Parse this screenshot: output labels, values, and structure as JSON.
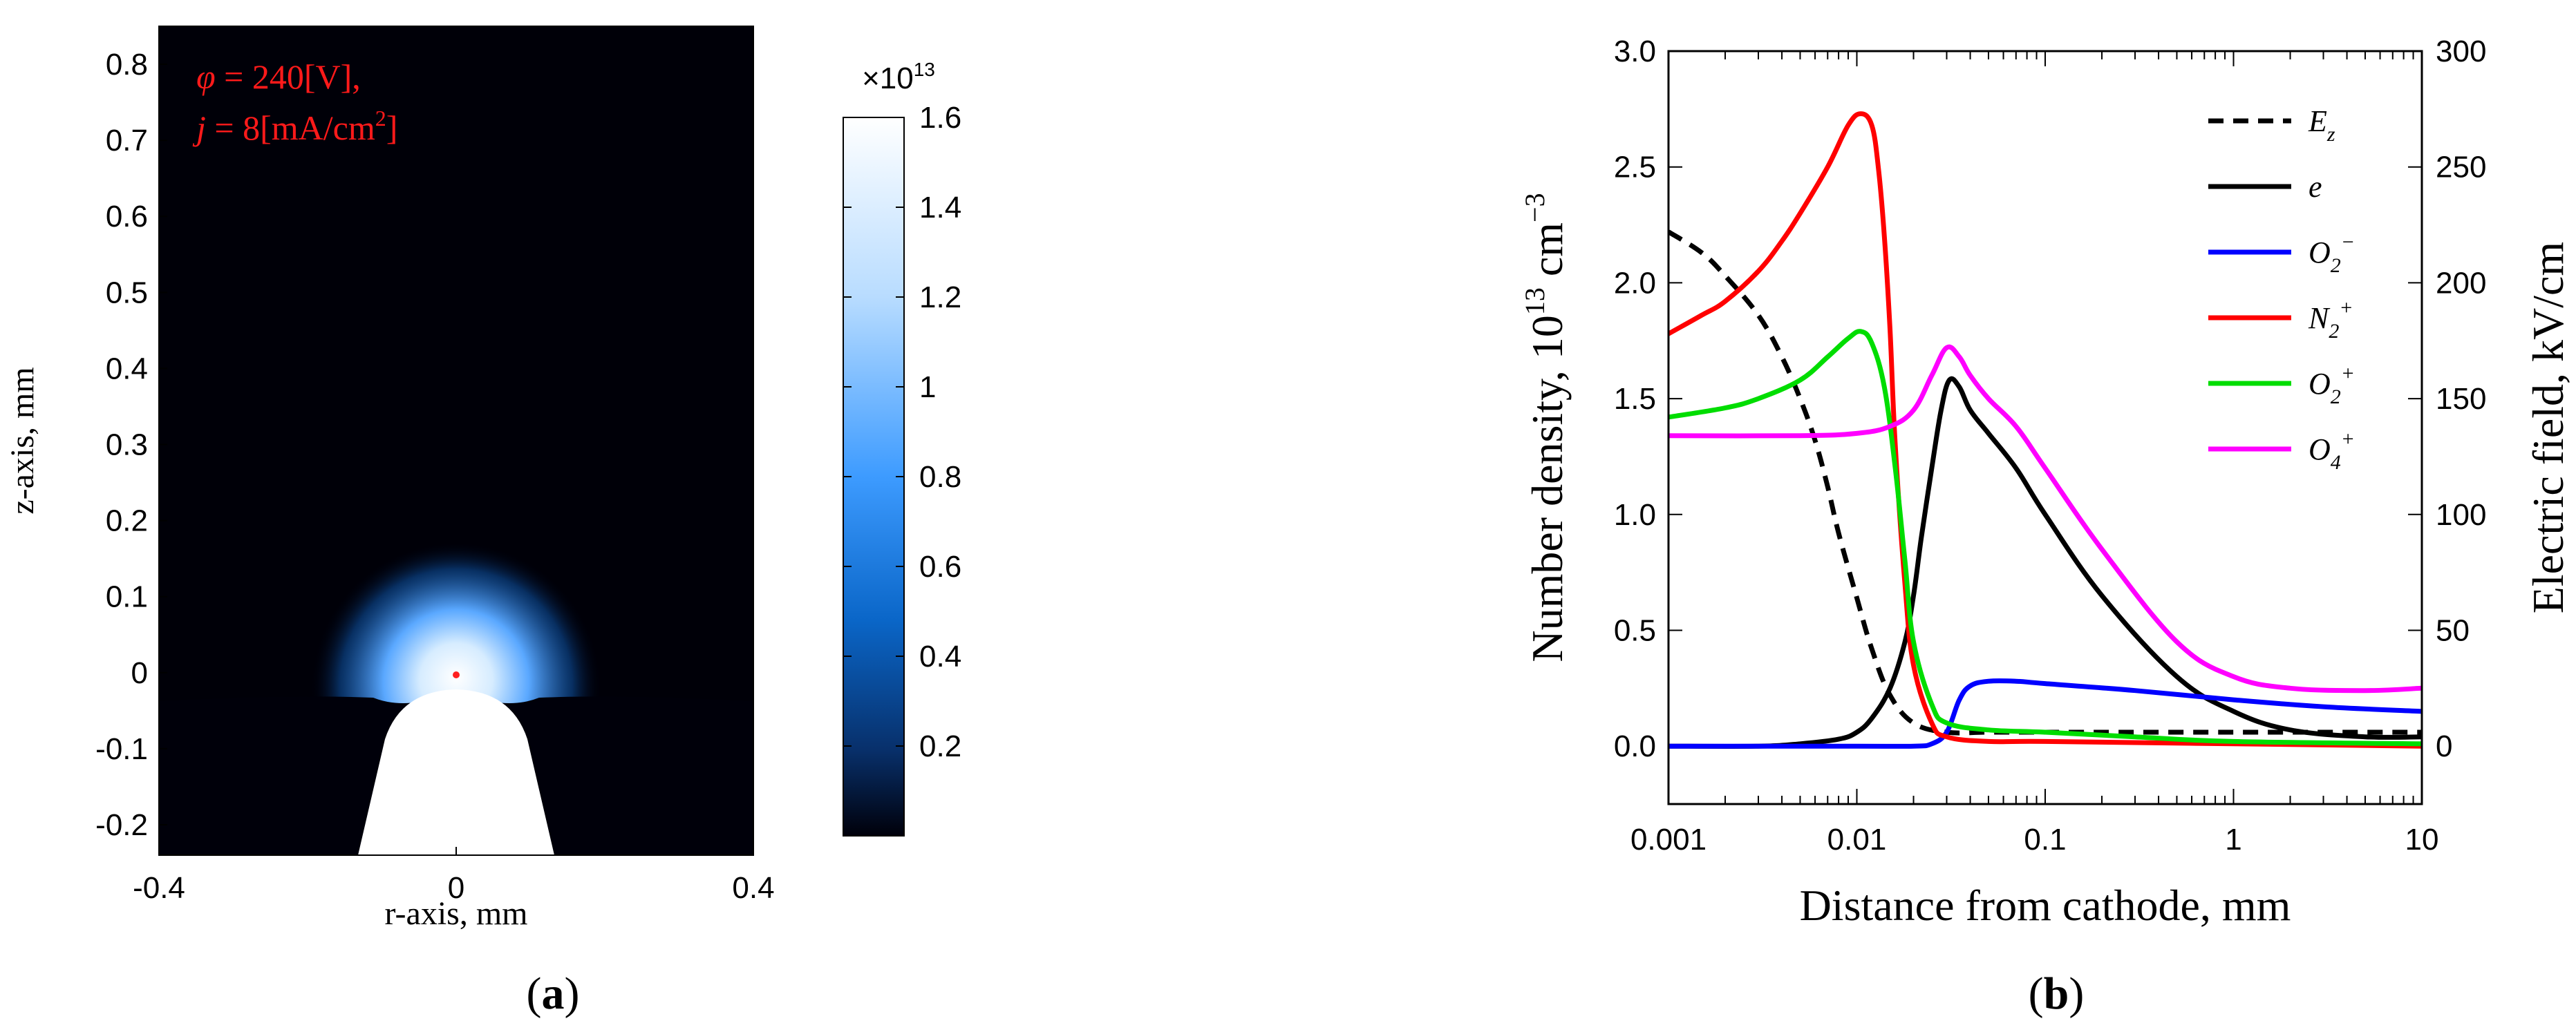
{
  "chart_data": [
    {
      "type": "heatmap",
      "panel_label": "a",
      "xlabel": "r-axis, mm",
      "ylabel": "z-axis, mm",
      "xlim": [
        -0.4,
        0.4
      ],
      "ylim": [
        -0.24,
        0.85
      ],
      "x_ticks": [
        "-0.4",
        "0",
        "0.4"
      ],
      "y_ticks": [
        "0.8",
        "0.7",
        "0.6",
        "0.5",
        "0.4",
        "0.3",
        "0.2",
        "0.1",
        "0",
        "-0.1",
        "-0.2"
      ],
      "annotation": {
        "line1_symbol": "φ",
        "line1_rest": " = 240[V],",
        "line2_symbol": "j",
        "line2_rest": " = 8[mA/cm",
        "line2_sup": "2",
        "line2_end": "]"
      },
      "probe_point": {
        "r": 0.0,
        "z": 0.05
      },
      "electrode": {
        "tip_z": 0.0,
        "tip_radius": 0.1,
        "base_halfwidth": 0.14
      },
      "colorbar": {
        "multiplier_base": "×10",
        "multiplier_exp": "13",
        "min": 0,
        "max": 1.6,
        "ticks": [
          "1.6",
          "1.4",
          "1.2",
          "1",
          "0.8",
          "0.6",
          "0.4",
          "0.2"
        ],
        "colors": [
          "#00000a",
          "#08306b",
          "#0a66c8",
          "#1e90ff",
          "#9fd0ff",
          "#ffffff"
        ]
      }
    },
    {
      "type": "line",
      "panel_label": "b",
      "xlabel": "Distance from cathode, mm",
      "ylabel_left": "Number density, 10",
      "ylabel_left_exp": "13",
      "ylabel_left_unit": " cm",
      "ylabel_left_unit_exp": "−3",
      "ylabel_right": "Electric field, kV/cm",
      "xscale": "log",
      "xlim": [
        0.001,
        10
      ],
      "ylim_left": [
        -0.25,
        3.0
      ],
      "ylim_right": [
        -25,
        300
      ],
      "x_ticks": [
        "0.001",
        "0.01",
        "0.1",
        "1",
        "10"
      ],
      "y_ticks_left": [
        "3.0",
        "2.5",
        "2.0",
        "1.5",
        "1.0",
        "0.5",
        "0.0"
      ],
      "y_ticks_right": [
        "300",
        "250",
        "200",
        "150",
        "100",
        "50",
        "0"
      ],
      "legend_placement": "top-right",
      "series": [
        {
          "name": "E",
          "sub": "z",
          "sup": "",
          "color": "#000000",
          "dashed": true,
          "axis": "right",
          "points": [
            [
              0.001,
              222
            ],
            [
              0.0015,
              213
            ],
            [
              0.002,
              203
            ],
            [
              0.003,
              186
            ],
            [
              0.004,
              168
            ],
            [
              0.005,
              150
            ],
            [
              0.006,
              132
            ],
            [
              0.007,
              112
            ],
            [
              0.008,
              92
            ],
            [
              0.01,
              64
            ],
            [
              0.012,
              42
            ],
            [
              0.015,
              22
            ],
            [
              0.02,
              10
            ],
            [
              0.03,
              6
            ],
            [
              0.05,
              6
            ],
            [
              0.1,
              6
            ],
            [
              1,
              6
            ],
            [
              10,
              6
            ]
          ]
        },
        {
          "name": "e",
          "sub": "",
          "sup": "",
          "color": "#000000",
          "dashed": false,
          "axis": "left",
          "points": [
            [
              0.001,
              0.0
            ],
            [
              0.003,
              0.0
            ],
            [
              0.005,
              0.01
            ],
            [
              0.008,
              0.03
            ],
            [
              0.01,
              0.06
            ],
            [
              0.012,
              0.12
            ],
            [
              0.015,
              0.25
            ],
            [
              0.018,
              0.45
            ],
            [
              0.02,
              0.65
            ],
            [
              0.022,
              0.9
            ],
            [
              0.025,
              1.2
            ],
            [
              0.028,
              1.45
            ],
            [
              0.031,
              1.58
            ],
            [
              0.035,
              1.55
            ],
            [
              0.04,
              1.45
            ],
            [
              0.05,
              1.35
            ],
            [
              0.07,
              1.2
            ],
            [
              0.1,
              1.0
            ],
            [
              0.2,
              0.65
            ],
            [
              0.5,
              0.3
            ],
            [
              1,
              0.15
            ],
            [
              2,
              0.07
            ],
            [
              5,
              0.04
            ],
            [
              10,
              0.04
            ]
          ]
        },
        {
          "name": "O",
          "sub": "2",
          "sup": "−",
          "color": "#0000ff",
          "dashed": false,
          "axis": "left",
          "points": [
            [
              0.001,
              0.0
            ],
            [
              0.01,
              0.0
            ],
            [
              0.02,
              0.0
            ],
            [
              0.025,
              0.01
            ],
            [
              0.03,
              0.06
            ],
            [
              0.035,
              0.2
            ],
            [
              0.04,
              0.26
            ],
            [
              0.05,
              0.28
            ],
            [
              0.07,
              0.28
            ],
            [
              0.1,
              0.27
            ],
            [
              0.3,
              0.24
            ],
            [
              1,
              0.2
            ],
            [
              3,
              0.17
            ],
            [
              10,
              0.15
            ]
          ]
        },
        {
          "name": "N",
          "sub": "2",
          "sup": "+",
          "color": "#ff0000",
          "dashed": false,
          "axis": "left",
          "points": [
            [
              0.001,
              1.78
            ],
            [
              0.0015,
              1.86
            ],
            [
              0.002,
              1.92
            ],
            [
              0.003,
              2.05
            ],
            [
              0.004,
              2.18
            ],
            [
              0.005,
              2.3
            ],
            [
              0.007,
              2.5
            ],
            [
              0.009,
              2.68
            ],
            [
              0.0105,
              2.73
            ],
            [
              0.012,
              2.68
            ],
            [
              0.013,
              2.5
            ],
            [
              0.014,
              2.2
            ],
            [
              0.015,
              1.8
            ],
            [
              0.016,
              1.3
            ],
            [
              0.018,
              0.7
            ],
            [
              0.02,
              0.35
            ],
            [
              0.025,
              0.1
            ],
            [
              0.03,
              0.04
            ],
            [
              0.05,
              0.02
            ],
            [
              0.1,
              0.02
            ],
            [
              1,
              0.01
            ],
            [
              10,
              0.0
            ]
          ]
        },
        {
          "name": "O",
          "sub": "2",
          "sup": "+",
          "color": "#00dd00",
          "dashed": false,
          "axis": "left",
          "points": [
            [
              0.001,
              1.42
            ],
            [
              0.002,
              1.46
            ],
            [
              0.003,
              1.5
            ],
            [
              0.005,
              1.58
            ],
            [
              0.007,
              1.68
            ],
            [
              0.009,
              1.76
            ],
            [
              0.0105,
              1.79
            ],
            [
              0.012,
              1.74
            ],
            [
              0.014,
              1.55
            ],
            [
              0.016,
              1.2
            ],
            [
              0.018,
              0.8
            ],
            [
              0.02,
              0.45
            ],
            [
              0.025,
              0.18
            ],
            [
              0.03,
              0.1
            ],
            [
              0.05,
              0.07
            ],
            [
              0.1,
              0.06
            ],
            [
              0.3,
              0.04
            ],
            [
              1,
              0.02
            ],
            [
              10,
              0.01
            ]
          ]
        },
        {
          "name": "O",
          "sub": "4",
          "sup": "+",
          "color": "#ff00ff",
          "dashed": false,
          "axis": "left",
          "points": [
            [
              0.001,
              1.34
            ],
            [
              0.005,
              1.34
            ],
            [
              0.01,
              1.35
            ],
            [
              0.015,
              1.38
            ],
            [
              0.02,
              1.45
            ],
            [
              0.025,
              1.6
            ],
            [
              0.03,
              1.72
            ],
            [
              0.035,
              1.68
            ],
            [
              0.04,
              1.6
            ],
            [
              0.05,
              1.5
            ],
            [
              0.07,
              1.38
            ],
            [
              0.1,
              1.2
            ],
            [
              0.2,
              0.85
            ],
            [
              0.5,
              0.45
            ],
            [
              1,
              0.3
            ],
            [
              2,
              0.25
            ],
            [
              5,
              0.24
            ],
            [
              10,
              0.25
            ]
          ]
        }
      ]
    }
  ]
}
